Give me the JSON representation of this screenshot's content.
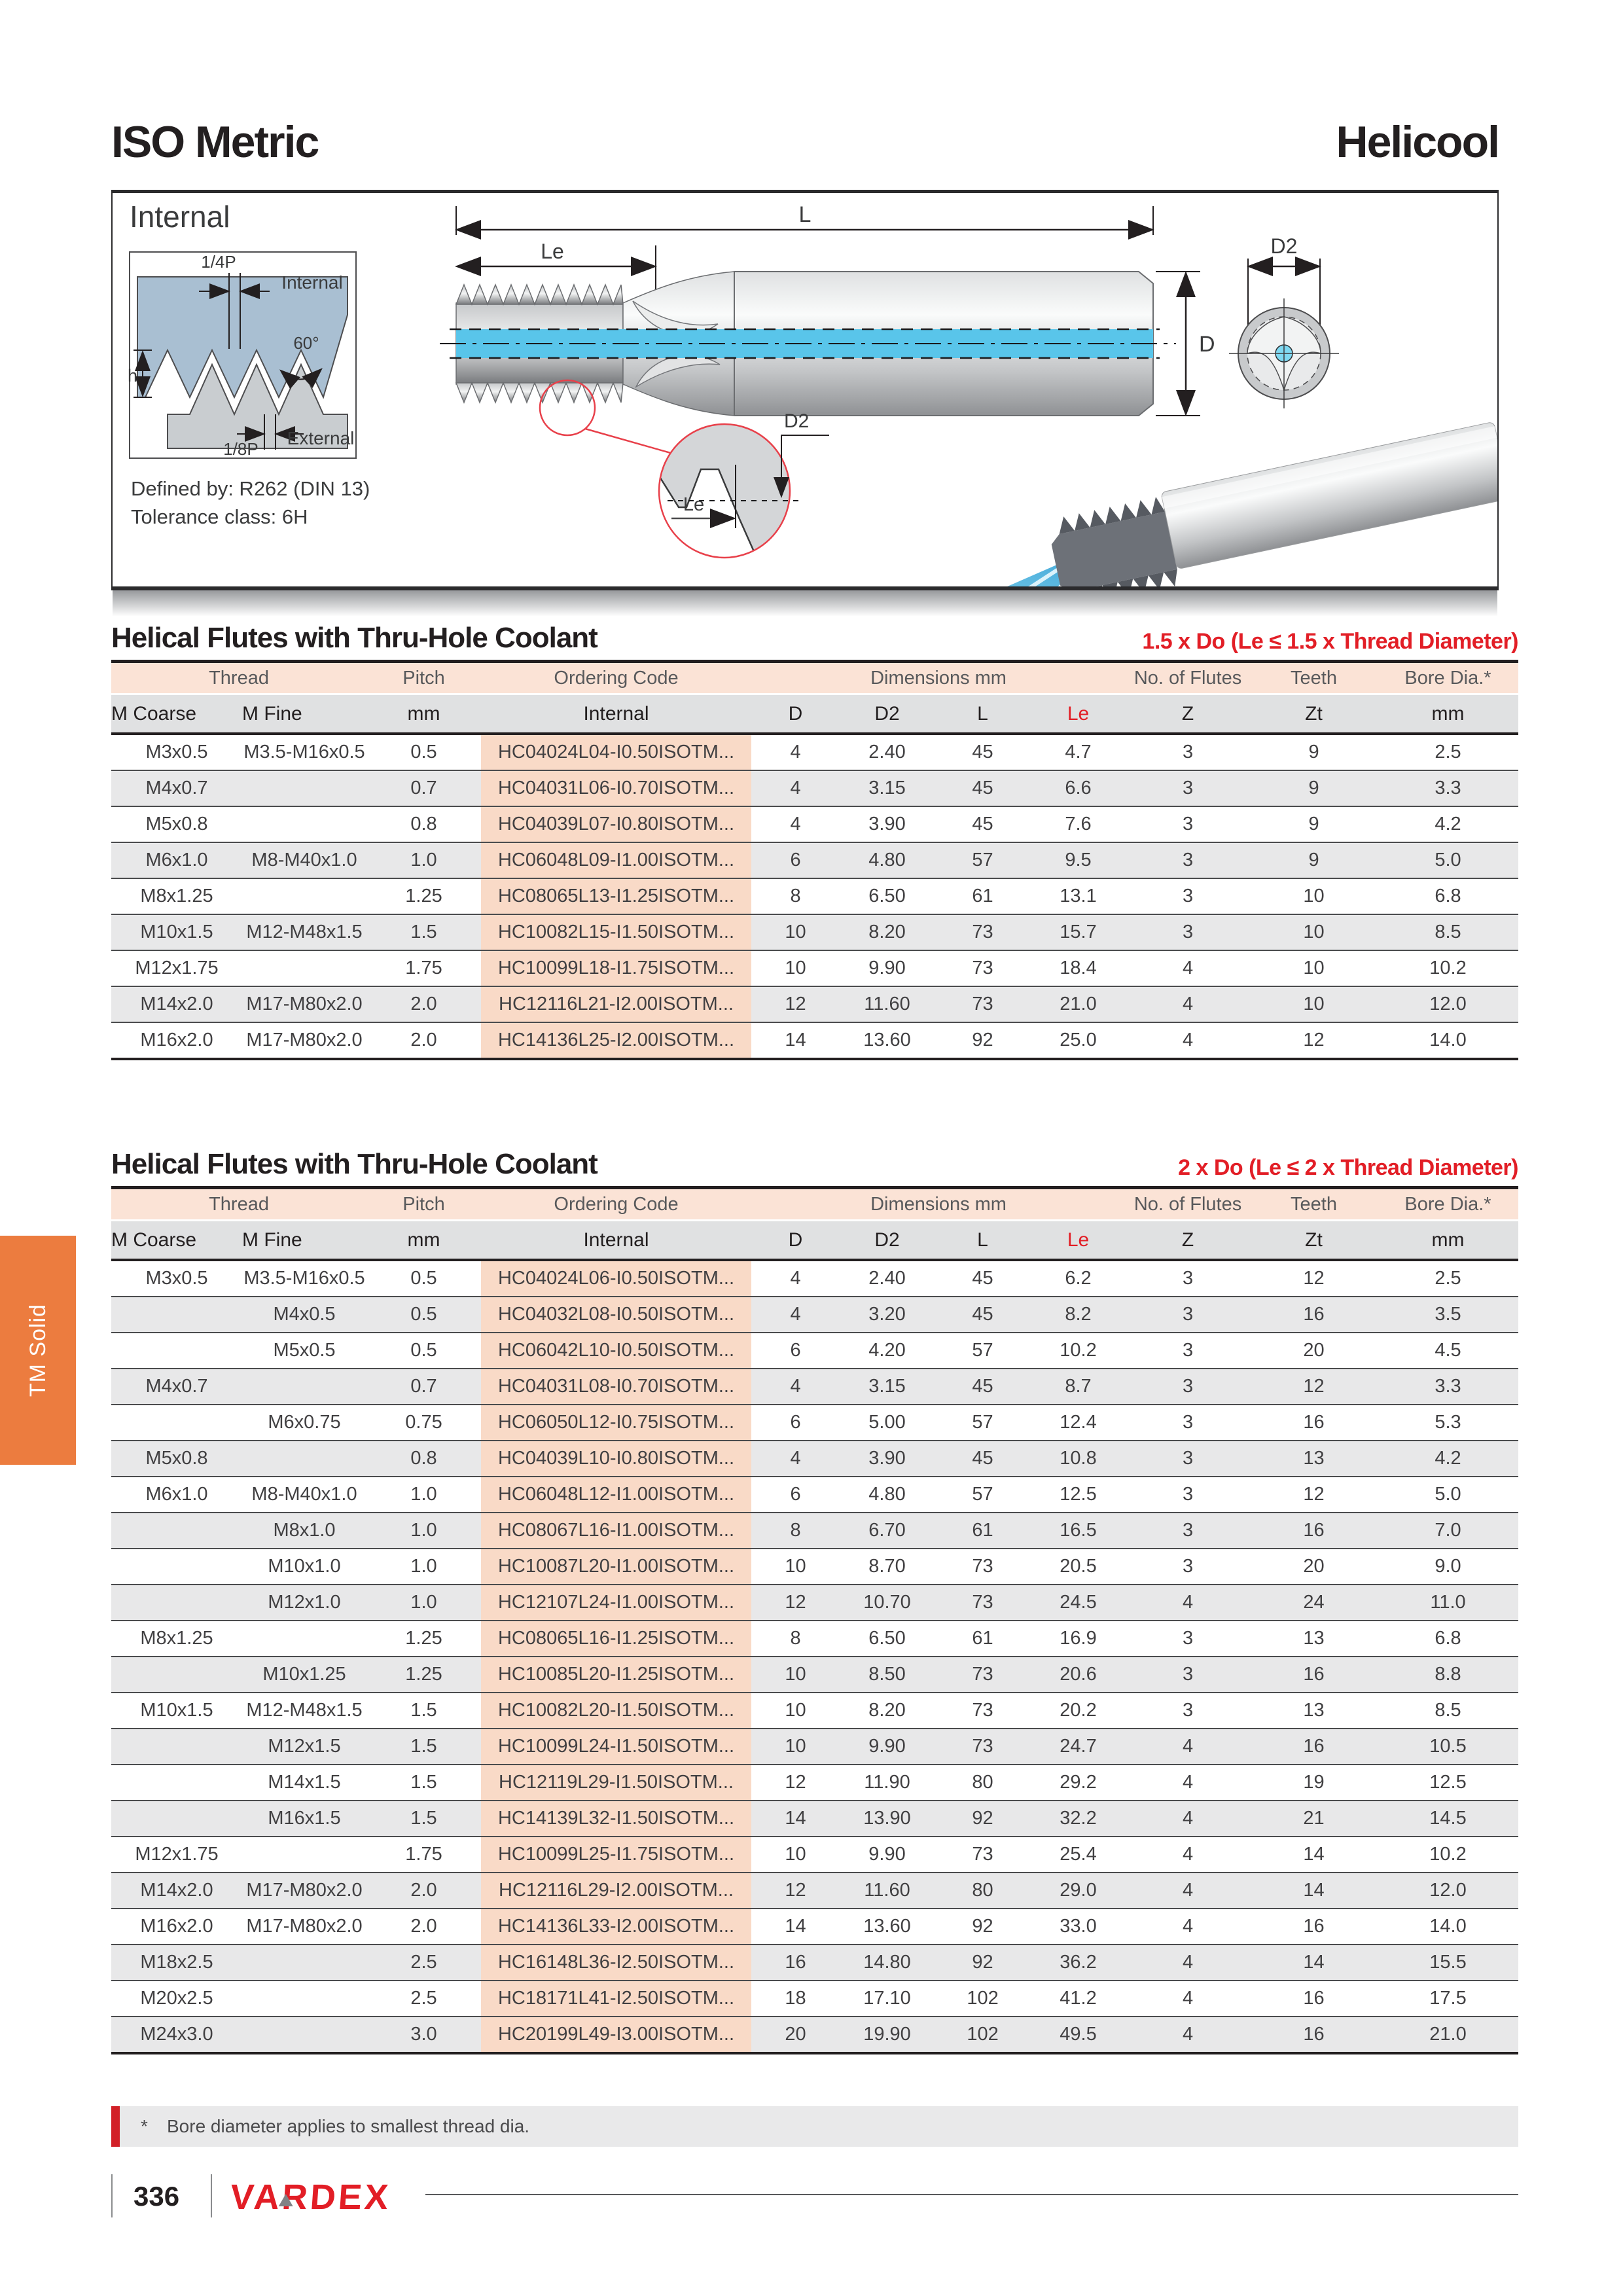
{
  "page": {
    "title_left": "ISO Metric",
    "title_right": "Helicool",
    "side_tab": "TM Solid",
    "footnote_mark": "*",
    "footnote_text": "Bore diameter applies to smallest thread dia.",
    "page_number": "336",
    "brand": "VARDEX"
  },
  "colors": {
    "accent_red": "#E21E26",
    "tab_orange": "#EC7C3F",
    "coolant_blue": "#59C5EA"
  },
  "diagram": {
    "title": "Internal",
    "defined_by": "Defined by: R262 (DIN 13)",
    "tolerance_class": "Tolerance class: 6H",
    "labels": {
      "quarter_pitch": "1/4P",
      "internal": "Internal",
      "angle": "60°",
      "height": "h",
      "eighth_pitch": "1/8P",
      "external": "External"
    },
    "dims": {
      "total_length": "L",
      "thread_length": "Le",
      "shank_dia": "D",
      "cutting_dia": "D2"
    }
  },
  "tables": [
    {
      "title": "Helical Flutes with Thru-Hole Coolant",
      "annotation": "1.5 x Do (Le ≤ 1.5 x Thread Diameter)",
      "group_headers": [
        "Thread",
        "Pitch",
        "Ordering Code",
        "Dimensions mm",
        "No. of Flutes",
        "Teeth",
        "Bore Dia.*"
      ],
      "col_headers": [
        "M Coarse",
        "M Fine",
        "mm",
        "Internal",
        "D",
        "D2",
        "L",
        "Le",
        "Z",
        "Zt",
        "mm"
      ],
      "rows": [
        [
          "M3x0.5",
          "M3.5-M16x0.5",
          "0.5",
          "HC04024L04-I0.50ISOTM...",
          "4",
          "2.40",
          "45",
          "4.7",
          "3",
          "9",
          "2.5"
        ],
        [
          "M4x0.7",
          "",
          "0.7",
          "HC04031L06-I0.70ISOTM...",
          "4",
          "3.15",
          "45",
          "6.6",
          "3",
          "9",
          "3.3"
        ],
        [
          "M5x0.8",
          "",
          "0.8",
          "HC04039L07-I0.80ISOTM...",
          "4",
          "3.90",
          "45",
          "7.6",
          "3",
          "9",
          "4.2"
        ],
        [
          "M6x1.0",
          "M8-M40x1.0",
          "1.0",
          "HC06048L09-I1.00ISOTM...",
          "6",
          "4.80",
          "57",
          "9.5",
          "3",
          "9",
          "5.0"
        ],
        [
          "M8x1.25",
          "",
          "1.25",
          "HC08065L13-I1.25ISOTM...",
          "8",
          "6.50",
          "61",
          "13.1",
          "3",
          "10",
          "6.8"
        ],
        [
          "M10x1.5",
          "M12-M48x1.5",
          "1.5",
          "HC10082L15-I1.50ISOTM...",
          "10",
          "8.20",
          "73",
          "15.7",
          "3",
          "10",
          "8.5"
        ],
        [
          "M12x1.75",
          "",
          "1.75",
          "HC10099L18-I1.75ISOTM...",
          "10",
          "9.90",
          "73",
          "18.4",
          "4",
          "10",
          "10.2"
        ],
        [
          "M14x2.0",
          "M17-M80x2.0",
          "2.0",
          "HC12116L21-I2.00ISOTM...",
          "12",
          "11.60",
          "73",
          "21.0",
          "4",
          "10",
          "12.0"
        ],
        [
          "M16x2.0",
          "M17-M80x2.0",
          "2.0",
          "HC14136L25-I2.00ISOTM...",
          "14",
          "13.60",
          "92",
          "25.0",
          "4",
          "12",
          "14.0"
        ]
      ]
    },
    {
      "title": "Helical Flutes with Thru-Hole Coolant",
      "annotation": "2 x Do (Le ≤ 2 x Thread Diameter)",
      "group_headers": [
        "Thread",
        "Pitch",
        "Ordering Code",
        "Dimensions mm",
        "No. of Flutes",
        "Teeth",
        "Bore Dia.*"
      ],
      "col_headers": [
        "M Coarse",
        "M Fine",
        "mm",
        "Internal",
        "D",
        "D2",
        "L",
        "Le",
        "Z",
        "Zt",
        "mm"
      ],
      "rows": [
        [
          "M3x0.5",
          "M3.5-M16x0.5",
          "0.5",
          "HC04024L06-I0.50ISOTM...",
          "4",
          "2.40",
          "45",
          "6.2",
          "3",
          "12",
          "2.5"
        ],
        [
          "",
          "M4x0.5",
          "0.5",
          "HC04032L08-I0.50ISOTM...",
          "4",
          "3.20",
          "45",
          "8.2",
          "3",
          "16",
          "3.5"
        ],
        [
          "",
          "M5x0.5",
          "0.5",
          "HC06042L10-I0.50ISOTM...",
          "6",
          "4.20",
          "57",
          "10.2",
          "3",
          "20",
          "4.5"
        ],
        [
          "M4x0.7",
          "",
          "0.7",
          "HC04031L08-I0.70ISOTM...",
          "4",
          "3.15",
          "45",
          "8.7",
          "3",
          "12",
          "3.3"
        ],
        [
          "",
          "M6x0.75",
          "0.75",
          "HC06050L12-I0.75ISOTM...",
          "6",
          "5.00",
          "57",
          "12.4",
          "3",
          "16",
          "5.3"
        ],
        [
          "M5x0.8",
          "",
          "0.8",
          "HC04039L10-I0.80ISOTM...",
          "4",
          "3.90",
          "45",
          "10.8",
          "3",
          "13",
          "4.2"
        ],
        [
          "M6x1.0",
          "M8-M40x1.0",
          "1.0",
          "HC06048L12-I1.00ISOTM...",
          "6",
          "4.80",
          "57",
          "12.5",
          "3",
          "12",
          "5.0"
        ],
        [
          "",
          "M8x1.0",
          "1.0",
          "HC08067L16-I1.00ISOTM...",
          "8",
          "6.70",
          "61",
          "16.5",
          "3",
          "16",
          "7.0"
        ],
        [
          "",
          "M10x1.0",
          "1.0",
          "HC10087L20-I1.00ISOTM...",
          "10",
          "8.70",
          "73",
          "20.5",
          "3",
          "20",
          "9.0"
        ],
        [
          "",
          "M12x1.0",
          "1.0",
          "HC12107L24-I1.00ISOTM...",
          "12",
          "10.70",
          "73",
          "24.5",
          "4",
          "24",
          "11.0"
        ],
        [
          "M8x1.25",
          "",
          "1.25",
          "HC08065L16-I1.25ISOTM...",
          "8",
          "6.50",
          "61",
          "16.9",
          "3",
          "13",
          "6.8"
        ],
        [
          "",
          "M10x1.25",
          "1.25",
          "HC10085L20-I1.25ISOTM...",
          "10",
          "8.50",
          "73",
          "20.6",
          "3",
          "16",
          "8.8"
        ],
        [
          "M10x1.5",
          "M12-M48x1.5",
          "1.5",
          "HC10082L20-I1.50ISOTM...",
          "10",
          "8.20",
          "73",
          "20.2",
          "3",
          "13",
          "8.5"
        ],
        [
          "",
          "M12x1.5",
          "1.5",
          "HC10099L24-I1.50ISOTM...",
          "10",
          "9.90",
          "73",
          "24.7",
          "4",
          "16",
          "10.5"
        ],
        [
          "",
          "M14x1.5",
          "1.5",
          "HC12119L29-I1.50ISOTM...",
          "12",
          "11.90",
          "80",
          "29.2",
          "4",
          "19",
          "12.5"
        ],
        [
          "",
          "M16x1.5",
          "1.5",
          "HC14139L32-I1.50ISOTM...",
          "14",
          "13.90",
          "92",
          "32.2",
          "4",
          "21",
          "14.5"
        ],
        [
          "M12x1.75",
          "",
          "1.75",
          "HC10099L25-I1.75ISOTM...",
          "10",
          "9.90",
          "73",
          "25.4",
          "4",
          "14",
          "10.2"
        ],
        [
          "M14x2.0",
          "M17-M80x2.0",
          "2.0",
          "HC12116L29-I2.00ISOTM...",
          "12",
          "11.60",
          "80",
          "29.0",
          "4",
          "14",
          "12.0"
        ],
        [
          "M16x2.0",
          "M17-M80x2.0",
          "2.0",
          "HC14136L33-I2.00ISOTM...",
          "14",
          "13.60",
          "92",
          "33.0",
          "4",
          "16",
          "14.0"
        ],
        [
          "M18x2.5",
          "",
          "2.5",
          "HC16148L36-I2.50ISOTM...",
          "16",
          "14.80",
          "92",
          "36.2",
          "4",
          "14",
          "15.5"
        ],
        [
          "M20x2.5",
          "",
          "2.5",
          "HC18171L41-I2.50ISOTM...",
          "18",
          "17.10",
          "102",
          "41.2",
          "4",
          "16",
          "17.5"
        ],
        [
          "M24x3.0",
          "",
          "3.0",
          "HC20199L49-I3.00ISOTM...",
          "20",
          "19.90",
          "102",
          "49.5",
          "4",
          "16",
          "21.0"
        ]
      ]
    }
  ]
}
